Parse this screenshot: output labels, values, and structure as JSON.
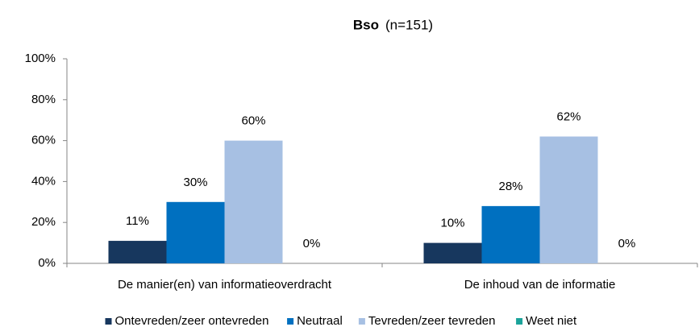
{
  "chart_data": {
    "type": "bar",
    "title": "Bso",
    "subtitle": "(n=151)",
    "categories": [
      "De manier(en) van informatieoverdracht",
      "De inhoud van de informatie"
    ],
    "series": [
      {
        "name": "Ontevreden/zeer ontevreden",
        "color": "#17375e",
        "values": [
          11,
          10
        ],
        "value_labels": [
          "11%",
          "10%"
        ]
      },
      {
        "name": "Neutraal",
        "color": "#0070c0",
        "values": [
          30,
          28
        ],
        "value_labels": [
          "30%",
          "28%"
        ]
      },
      {
        "name": "Tevreden/zeer tevreden",
        "color": "#a7c0e3",
        "values": [
          60,
          62
        ],
        "value_labels": [
          "60%",
          "62%"
        ]
      },
      {
        "name": "Weet niet",
        "color": "#1aa39a",
        "values": [
          0,
          0
        ],
        "value_labels": [
          "0%",
          "0%"
        ]
      }
    ],
    "ylim": [
      0,
      100
    ],
    "yticks": [
      {
        "value": 0,
        "label": "0%"
      },
      {
        "value": 20,
        "label": "20%"
      },
      {
        "value": 40,
        "label": "40%"
      },
      {
        "value": 60,
        "label": "60%"
      },
      {
        "value": 80,
        "label": "80%"
      },
      {
        "value": 100,
        "label": "100%"
      }
    ],
    "grid": false,
    "legend": "bottom"
  }
}
